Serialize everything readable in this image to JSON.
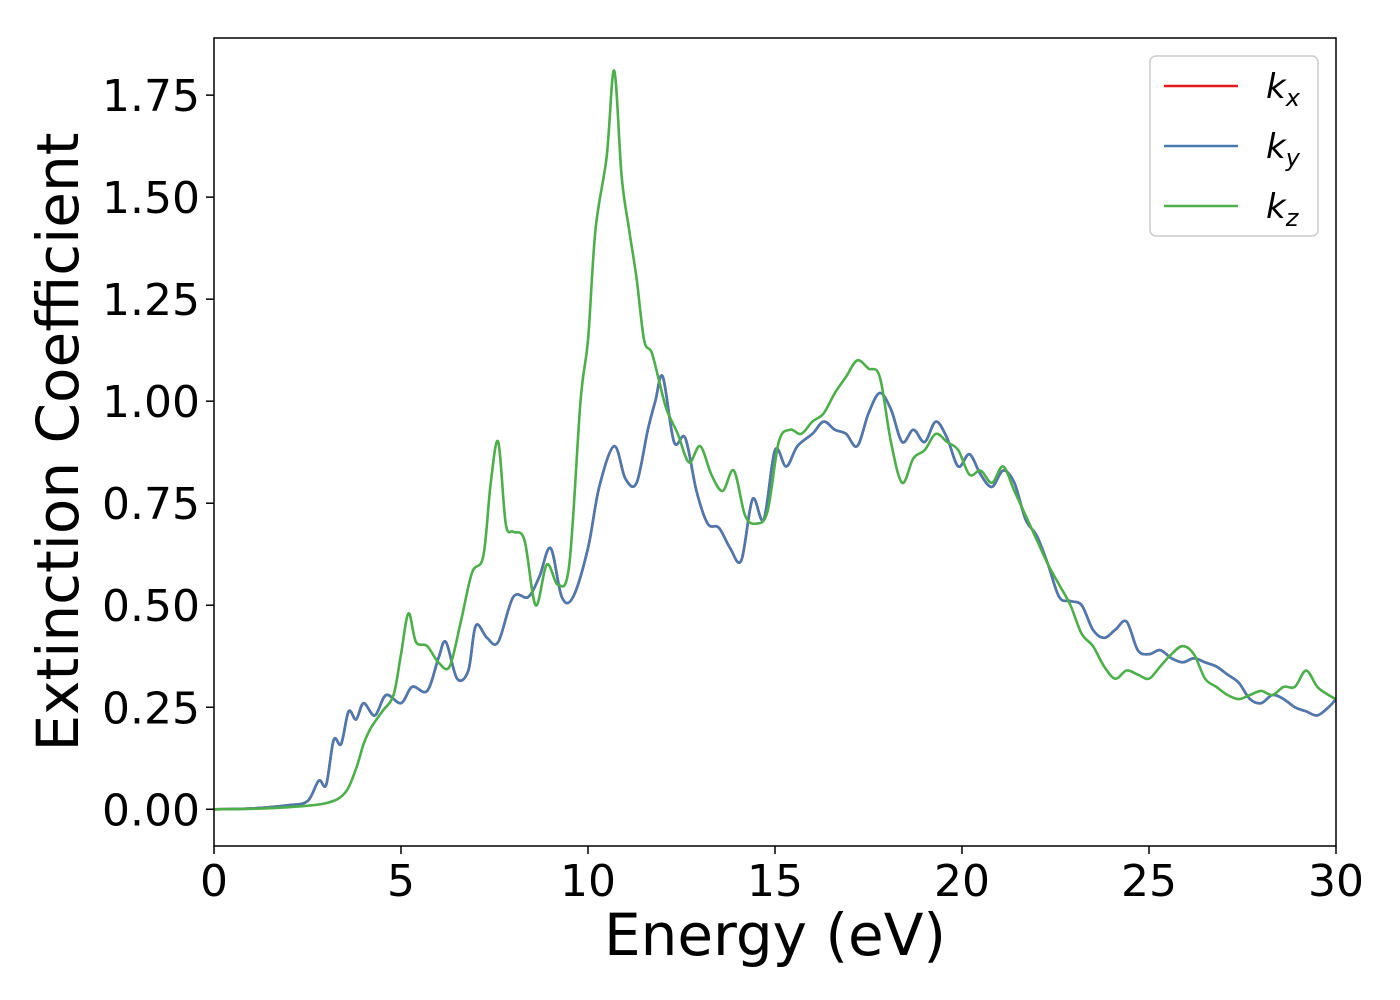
{
  "chart_data": {
    "type": "line",
    "xlabel": "Energy (eV)",
    "ylabel": "Extinction Coefficient",
    "xlim": [
      0,
      30
    ],
    "ylim": [
      -0.09,
      1.89
    ],
    "xticks": [
      0,
      5,
      10,
      15,
      20,
      25,
      30
    ],
    "xtick_labels": [
      "0",
      "5",
      "10",
      "15",
      "20",
      "25",
      "30"
    ],
    "yticks": [
      0.0,
      0.25,
      0.5,
      0.75,
      1.0,
      1.25,
      1.5,
      1.75
    ],
    "ytick_labels": [
      "0.00",
      "0.25",
      "0.50",
      "0.75",
      "1.00",
      "1.25",
      "1.50",
      "1.75"
    ],
    "grid": false,
    "legend_position": "top-right",
    "series": [
      {
        "name": "k_x",
        "label_base": "k",
        "label_sub": "x",
        "color": "#e41a1c",
        "x": [
          0,
          1,
          2,
          2.5,
          2.8,
          3.0,
          3.2,
          3.4,
          3.6,
          3.8,
          4.0,
          4.3,
          4.6,
          5.0,
          5.3,
          5.7,
          6.0,
          6.2,
          6.5,
          6.8,
          7.0,
          7.3,
          7.6,
          8.0,
          8.4,
          8.7,
          9.0,
          9.3,
          9.6,
          10.0,
          10.3,
          10.7,
          11.0,
          11.3,
          11.6,
          11.8,
          12.0,
          12.3,
          12.6,
          12.9,
          13.2,
          13.5,
          13.8,
          14.1,
          14.4,
          14.7,
          15.0,
          15.3,
          15.6,
          16.0,
          16.3,
          16.6,
          16.9,
          17.2,
          17.5,
          17.8,
          18.1,
          18.4,
          18.7,
          19.0,
          19.3,
          19.6,
          19.9,
          20.2,
          20.5,
          20.8,
          21.1,
          21.4,
          21.7,
          22.0,
          22.3,
          22.6,
          22.9,
          23.2,
          23.5,
          23.8,
          24.1,
          24.4,
          24.7,
          25.0,
          25.3,
          25.6,
          25.9,
          26.2,
          26.5,
          26.8,
          27.1,
          27.4,
          27.7,
          28.0,
          28.3,
          28.6,
          28.9,
          29.2,
          29.5,
          29.8,
          30.0
        ],
        "y": [
          0,
          0.002,
          0.01,
          0.02,
          0.07,
          0.06,
          0.17,
          0.16,
          0.24,
          0.22,
          0.26,
          0.23,
          0.28,
          0.26,
          0.3,
          0.29,
          0.37,
          0.41,
          0.32,
          0.34,
          0.45,
          0.42,
          0.41,
          0.52,
          0.52,
          0.57,
          0.64,
          0.52,
          0.52,
          0.64,
          0.79,
          0.89,
          0.81,
          0.8,
          0.93,
          1.0,
          1.06,
          0.9,
          0.91,
          0.78,
          0.7,
          0.69,
          0.64,
          0.61,
          0.76,
          0.71,
          0.88,
          0.84,
          0.89,
          0.92,
          0.95,
          0.93,
          0.92,
          0.89,
          0.97,
          1.02,
          0.98,
          0.9,
          0.93,
          0.9,
          0.95,
          0.91,
          0.84,
          0.87,
          0.82,
          0.79,
          0.83,
          0.8,
          0.71,
          0.67,
          0.6,
          0.52,
          0.51,
          0.5,
          0.44,
          0.42,
          0.44,
          0.46,
          0.39,
          0.38,
          0.39,
          0.37,
          0.36,
          0.37,
          0.36,
          0.35,
          0.33,
          0.31,
          0.27,
          0.26,
          0.28,
          0.27,
          0.25,
          0.24,
          0.23,
          0.25,
          0.27
        ]
      },
      {
        "name": "k_y",
        "label_base": "k",
        "label_sub": "y",
        "color": "#4a7ab0",
        "x": [
          0,
          1,
          2,
          2.5,
          2.8,
          3.0,
          3.2,
          3.4,
          3.6,
          3.8,
          4.0,
          4.3,
          4.6,
          5.0,
          5.3,
          5.7,
          6.0,
          6.2,
          6.5,
          6.8,
          7.0,
          7.3,
          7.6,
          8.0,
          8.4,
          8.7,
          9.0,
          9.3,
          9.6,
          10.0,
          10.3,
          10.7,
          11.0,
          11.3,
          11.6,
          11.8,
          12.0,
          12.3,
          12.6,
          12.9,
          13.2,
          13.5,
          13.8,
          14.1,
          14.4,
          14.7,
          15.0,
          15.3,
          15.6,
          16.0,
          16.3,
          16.6,
          16.9,
          17.2,
          17.5,
          17.8,
          18.1,
          18.4,
          18.7,
          19.0,
          19.3,
          19.6,
          19.9,
          20.2,
          20.5,
          20.8,
          21.1,
          21.4,
          21.7,
          22.0,
          22.3,
          22.6,
          22.9,
          23.2,
          23.5,
          23.8,
          24.1,
          24.4,
          24.7,
          25.0,
          25.3,
          25.6,
          25.9,
          26.2,
          26.5,
          26.8,
          27.1,
          27.4,
          27.7,
          28.0,
          28.3,
          28.6,
          28.9,
          29.2,
          29.5,
          29.8,
          30.0
        ],
        "y": [
          0,
          0.002,
          0.01,
          0.02,
          0.07,
          0.06,
          0.17,
          0.16,
          0.24,
          0.22,
          0.26,
          0.23,
          0.28,
          0.26,
          0.3,
          0.29,
          0.37,
          0.41,
          0.32,
          0.34,
          0.45,
          0.42,
          0.41,
          0.52,
          0.52,
          0.57,
          0.64,
          0.52,
          0.52,
          0.64,
          0.79,
          0.89,
          0.81,
          0.8,
          0.93,
          1.0,
          1.06,
          0.9,
          0.91,
          0.78,
          0.7,
          0.69,
          0.64,
          0.61,
          0.76,
          0.71,
          0.88,
          0.84,
          0.89,
          0.92,
          0.95,
          0.93,
          0.92,
          0.89,
          0.97,
          1.02,
          0.98,
          0.9,
          0.93,
          0.9,
          0.95,
          0.91,
          0.84,
          0.87,
          0.82,
          0.79,
          0.83,
          0.8,
          0.71,
          0.67,
          0.6,
          0.52,
          0.51,
          0.5,
          0.44,
          0.42,
          0.44,
          0.46,
          0.39,
          0.38,
          0.39,
          0.37,
          0.36,
          0.37,
          0.36,
          0.35,
          0.33,
          0.31,
          0.27,
          0.26,
          0.28,
          0.27,
          0.25,
          0.24,
          0.23,
          0.25,
          0.27
        ]
      },
      {
        "name": "k_z",
        "label_base": "k",
        "label_sub": "z",
        "color": "#4daf4a",
        "x": [
          0,
          1,
          2,
          3.0,
          3.5,
          3.8,
          4.0,
          4.2,
          4.5,
          4.8,
          5.0,
          5.2,
          5.4,
          5.7,
          6.0,
          6.3,
          6.6,
          6.9,
          7.2,
          7.4,
          7.6,
          7.8,
          8.0,
          8.3,
          8.6,
          8.9,
          9.2,
          9.5,
          9.8,
          10.0,
          10.2,
          10.5,
          10.7,
          10.9,
          11.1,
          11.3,
          11.5,
          11.7,
          11.9,
          12.1,
          12.4,
          12.7,
          13.0,
          13.3,
          13.6,
          13.9,
          14.2,
          14.5,
          14.8,
          15.1,
          15.4,
          15.7,
          16.0,
          16.3,
          16.6,
          16.9,
          17.2,
          17.5,
          17.8,
          18.1,
          18.4,
          18.7,
          19.0,
          19.3,
          19.6,
          19.9,
          20.2,
          20.5,
          20.8,
          21.1,
          21.4,
          21.7,
          22.0,
          22.3,
          22.6,
          22.9,
          23.2,
          23.5,
          23.8,
          24.1,
          24.4,
          24.7,
          25.0,
          25.3,
          25.6,
          25.9,
          26.2,
          26.5,
          26.8,
          27.1,
          27.4,
          27.7,
          28.0,
          28.3,
          28.6,
          28.9,
          29.2,
          29.5,
          29.8,
          30.0
        ],
        "y": [
          0,
          0.001,
          0.005,
          0.015,
          0.04,
          0.1,
          0.16,
          0.2,
          0.24,
          0.28,
          0.38,
          0.48,
          0.41,
          0.4,
          0.36,
          0.35,
          0.46,
          0.58,
          0.62,
          0.8,
          0.9,
          0.7,
          0.68,
          0.66,
          0.5,
          0.6,
          0.55,
          0.6,
          1.0,
          1.15,
          1.42,
          1.6,
          1.81,
          1.55,
          1.42,
          1.3,
          1.15,
          1.12,
          1.05,
          0.98,
          0.92,
          0.85,
          0.89,
          0.82,
          0.78,
          0.83,
          0.72,
          0.7,
          0.73,
          0.9,
          0.93,
          0.92,
          0.95,
          0.97,
          1.02,
          1.06,
          1.1,
          1.08,
          1.06,
          0.9,
          0.8,
          0.86,
          0.88,
          0.92,
          0.9,
          0.88,
          0.82,
          0.83,
          0.8,
          0.84,
          0.78,
          0.72,
          0.66,
          0.6,
          0.55,
          0.5,
          0.43,
          0.4,
          0.35,
          0.32,
          0.34,
          0.33,
          0.32,
          0.35,
          0.38,
          0.4,
          0.38,
          0.32,
          0.3,
          0.28,
          0.27,
          0.28,
          0.29,
          0.28,
          0.3,
          0.3,
          0.34,
          0.3,
          0.28,
          0.27
        ]
      }
    ]
  }
}
